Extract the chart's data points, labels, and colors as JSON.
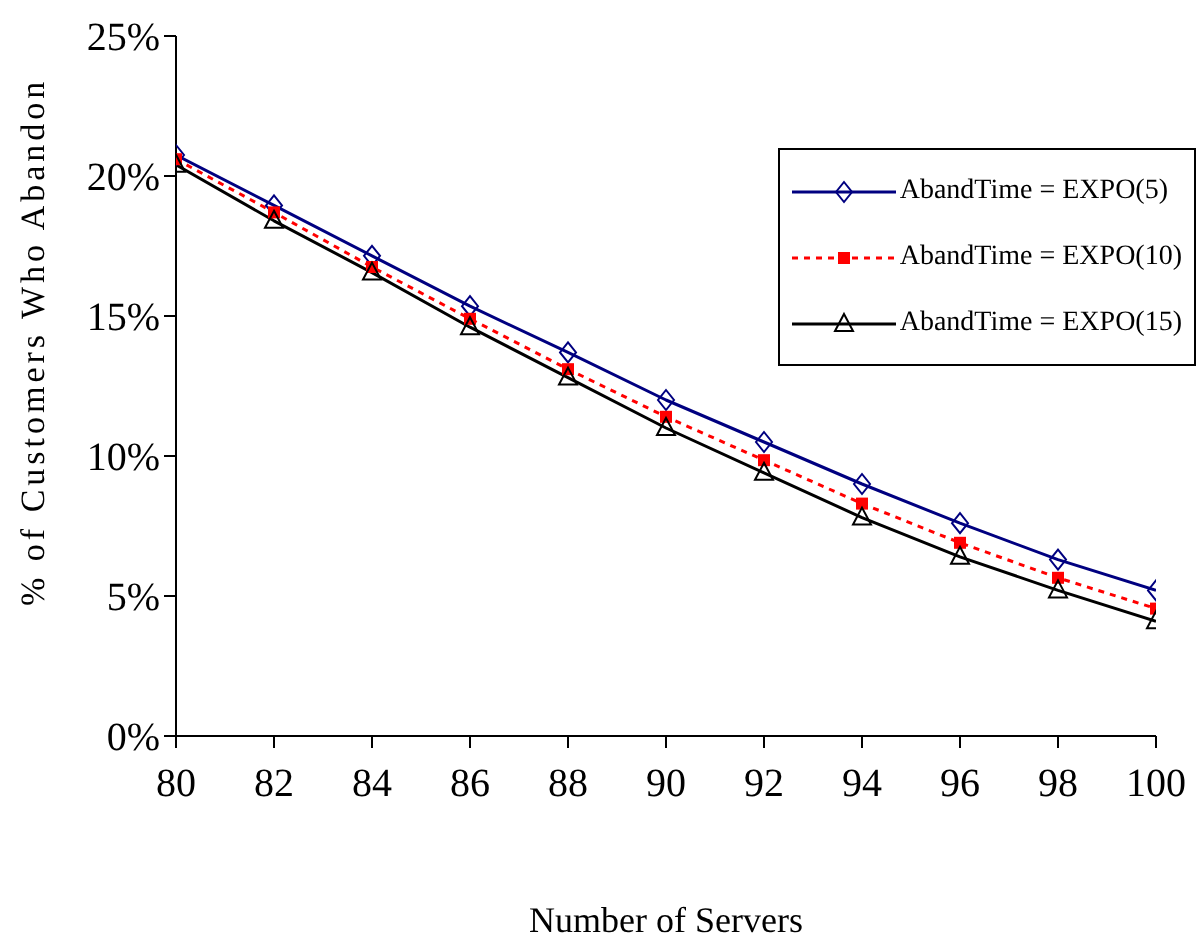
{
  "chart_data": {
    "type": "line",
    "xlabel": "Number of Servers",
    "ylabel": "% of Customers Who Abandon",
    "x": [
      80,
      82,
      84,
      86,
      88,
      90,
      92,
      94,
      96,
      98,
      100
    ],
    "xlim": [
      80,
      100
    ],
    "xticks": [
      80,
      82,
      84,
      86,
      88,
      90,
      92,
      94,
      96,
      98,
      100
    ],
    "ylim": [
      0,
      25
    ],
    "yticks": [
      {
        "value": 0,
        "label": "0%"
      },
      {
        "value": 5,
        "label": "5%"
      },
      {
        "value": 10,
        "label": "10%"
      },
      {
        "value": 15,
        "label": "15%"
      },
      {
        "value": 20,
        "label": "20%"
      },
      {
        "value": 25,
        "label": "25%"
      }
    ],
    "grid": false,
    "legend": "top right",
    "series": [
      {
        "name": "AbandTime = EXPO(5)",
        "color": "#000080",
        "marker": "diamond",
        "line_style": "solid",
        "values": [
          20.75,
          18.95,
          17.15,
          15.35,
          13.7,
          12.0,
          10.5,
          9.0,
          7.6,
          6.3,
          5.2
        ]
      },
      {
        "name": "AbandTime = EXPO(10)",
        "color": "#ff0000",
        "marker": "square",
        "line_style": "dotted",
        "values": [
          20.6,
          18.7,
          16.75,
          14.9,
          13.1,
          11.4,
          9.85,
          8.3,
          6.9,
          5.65,
          4.55
        ]
      },
      {
        "name": "AbandTime = EXPO(15)",
        "color": "#000000",
        "marker": "triangle",
        "line_style": "solid",
        "values": [
          20.4,
          18.4,
          16.55,
          14.6,
          12.8,
          11.0,
          9.4,
          7.8,
          6.4,
          5.2,
          4.1
        ]
      }
    ]
  }
}
